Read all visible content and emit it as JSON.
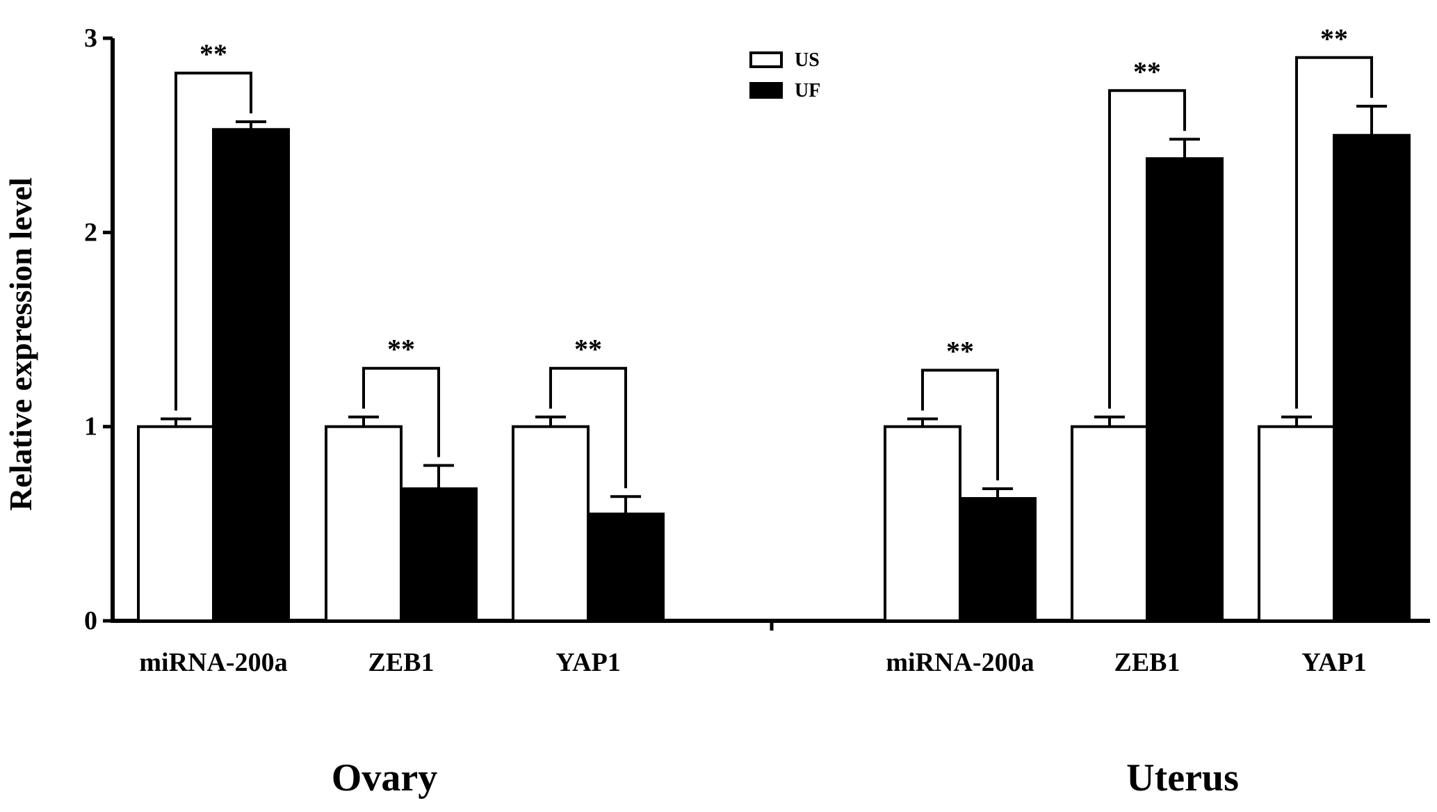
{
  "chart_data": {
    "type": "bar",
    "ylabel": "Relative expression level",
    "ylim": [
      0,
      3
    ],
    "yticks": [
      0,
      1,
      2,
      3
    ],
    "legend": {
      "placement": "top-center",
      "entries": [
        {
          "name": "US",
          "color": "#ffffff"
        },
        {
          "name": "UF",
          "color": "#000000"
        }
      ]
    },
    "significance_label": "**",
    "groups": [
      {
        "name": "Ovary",
        "categories": [
          "miRNA-200a",
          "ZEB1",
          "YAP1"
        ],
        "series": [
          {
            "name": "US",
            "values": [
              1.0,
              1.0,
              1.0
            ],
            "errors": [
              0.04,
              0.05,
              0.05
            ]
          },
          {
            "name": "UF",
            "values": [
              2.53,
              0.68,
              0.55
            ],
            "errors": [
              0.04,
              0.12,
              0.09
            ]
          }
        ],
        "significance": [
          "**",
          "**",
          "**"
        ]
      },
      {
        "name": "Uterus",
        "categories": [
          "miRNA-200a",
          "ZEB1",
          "YAP1"
        ],
        "series": [
          {
            "name": "US",
            "values": [
              1.0,
              1.0,
              1.0
            ],
            "errors": [
              0.04,
              0.05,
              0.05
            ]
          },
          {
            "name": "UF",
            "values": [
              0.63,
              2.38,
              2.5
            ],
            "errors": [
              0.05,
              0.1,
              0.15
            ]
          }
        ],
        "significance": [
          "**",
          "**",
          "**"
        ]
      }
    ]
  }
}
